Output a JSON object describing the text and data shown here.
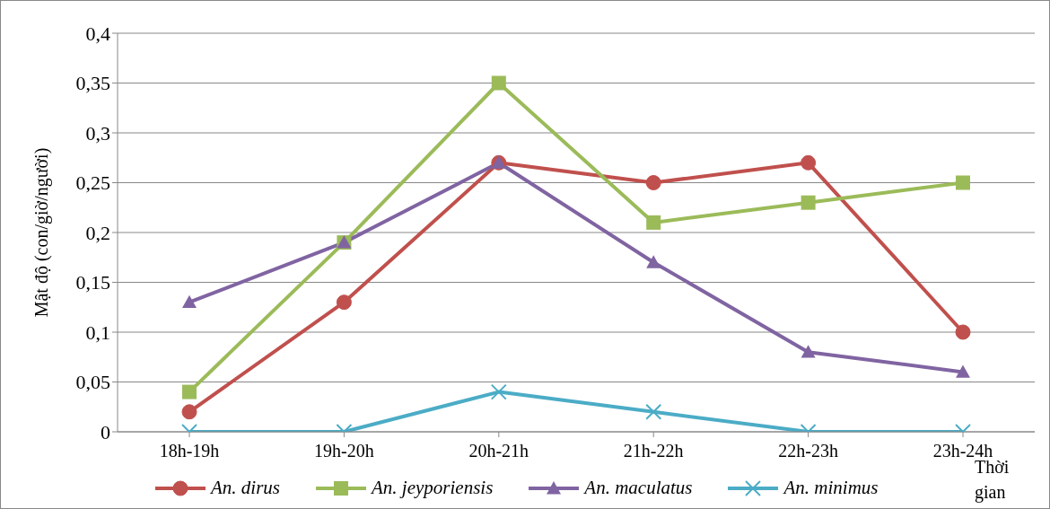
{
  "chart_data": {
    "type": "line",
    "ylabel": "Mật độ (con/giờ/người)",
    "xlabel": "Thời gian",
    "categories": [
      "18h-19h",
      "19h-20h",
      "20h-21h",
      "21h-22h",
      "22h-23h",
      "23h-24h"
    ],
    "series": [
      {
        "name": "An. dirus",
        "color": "#c0504d",
        "marker": "circle",
        "values": [
          0.02,
          0.13,
          0.27,
          0.25,
          0.27,
          0.1
        ]
      },
      {
        "name": "An. jeyporiensis",
        "color": "#9bbb59",
        "marker": "square",
        "values": [
          0.04,
          0.19,
          0.35,
          0.21,
          0.23,
          0.25
        ]
      },
      {
        "name": "An. maculatus",
        "color": "#8064a2",
        "marker": "triangle",
        "values": [
          0.13,
          0.19,
          0.27,
          0.17,
          0.08,
          0.06
        ]
      },
      {
        "name": "An. minimus",
        "color": "#4bacc6",
        "marker": "cross",
        "values": [
          0,
          0,
          0.04,
          0.02,
          0,
          0
        ]
      }
    ],
    "ylim": [
      0,
      0.4
    ],
    "yticks": [
      0,
      {
        "value": 0.05,
        "label": "0,05"
      },
      {
        "value": 0.1,
        "label": "0,1"
      },
      {
        "value": 0.15,
        "label": "0,15"
      },
      {
        "value": 0.2,
        "label": "0,2"
      },
      {
        "value": 0.25,
        "label": "0,25"
      },
      {
        "value": 0.3,
        "label": "0,3"
      },
      {
        "value": 0.35,
        "label": "0,35"
      },
      {
        "value": 0.4,
        "label": "0,4"
      }
    ],
    "grid": "y",
    "legend": "bottom",
    "line_style": "solid"
  }
}
